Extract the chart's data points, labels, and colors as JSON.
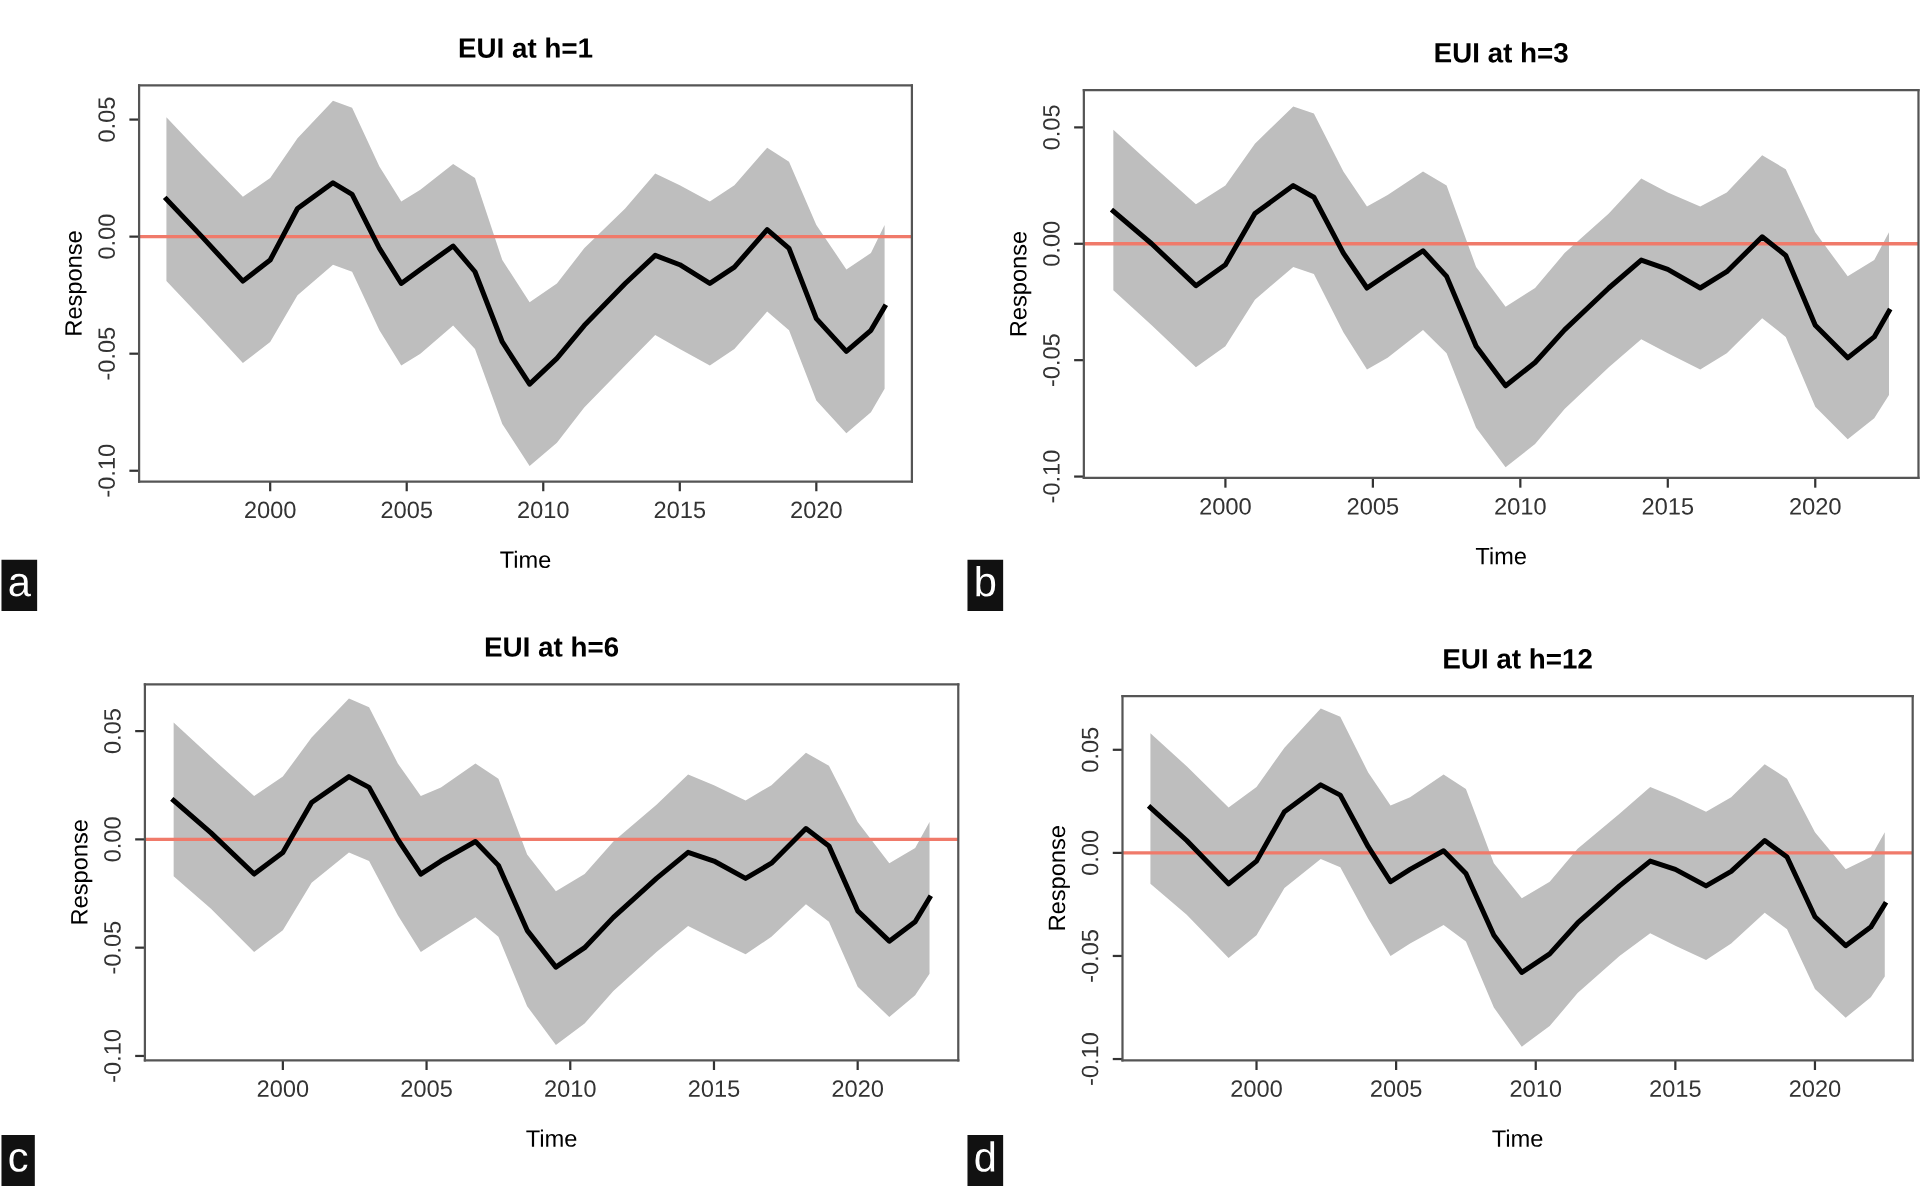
{
  "chart_data": [
    {
      "type": "line",
      "title": "EUI at h=1",
      "xlabel": "Time",
      "ylabel": "Response",
      "annotations": [
        "a"
      ],
      "xlim": [
        1995.2,
        2023.5
      ],
      "ylim": [
        -0.1046,
        0.0646
      ],
      "xticks": [
        2000,
        2005,
        2010,
        2015,
        2020
      ],
      "yticks": [
        {
          "value": -0.1,
          "label": "-0.10"
        },
        {
          "value": -0.05,
          "label": "-0.05"
        },
        {
          "value": 0,
          "label": "0.00"
        },
        {
          "value": 0.05,
          "label": "0.05"
        }
      ],
      "ref_lines": [
        {
          "axis": "y",
          "value": 0,
          "color": "#f07a6a"
        }
      ],
      "x": [
        1996.2,
        1997.5,
        1999,
        2000,
        2001,
        2002.3,
        2003,
        2004,
        2004.8,
        2005.5,
        2006.7,
        2007.5,
        2008.5,
        2009.5,
        2010.5,
        2011.5,
        2013,
        2014.1,
        2015,
        2016.1,
        2017,
        2018.2,
        2019,
        2020,
        2021.1,
        2022,
        2022.5
      ],
      "series": [
        {
          "color": "#000000",
          "values": [
            0.016,
            0.0,
            -0.019,
            -0.01,
            0.012,
            0.023,
            0.018,
            -0.005,
            -0.02,
            -0.014,
            -0.004,
            -0.015,
            -0.045,
            -0.063,
            -0.052,
            -0.038,
            -0.02,
            -0.008,
            -0.012,
            -0.02,
            -0.013,
            0.003,
            -0.005,
            -0.035,
            -0.049,
            -0.04,
            -0.03
          ],
          "upper": [
            0.051,
            0.035,
            0.017,
            0.025,
            0.042,
            0.058,
            0.055,
            0.03,
            0.015,
            0.02,
            0.031,
            0.025,
            -0.01,
            -0.028,
            -0.02,
            -0.005,
            0.012,
            0.027,
            0.022,
            0.015,
            0.022,
            0.038,
            0.032,
            0.005,
            -0.014,
            -0.007,
            0.005
          ],
          "lower": [
            -0.019,
            -0.035,
            -0.054,
            -0.045,
            -0.025,
            -0.012,
            -0.015,
            -0.04,
            -0.055,
            -0.05,
            -0.038,
            -0.048,
            -0.08,
            -0.098,
            -0.088,
            -0.073,
            -0.055,
            -0.042,
            -0.048,
            -0.055,
            -0.048,
            -0.032,
            -0.04,
            -0.07,
            -0.084,
            -0.075,
            -0.065
          ]
        }
      ]
    },
    {
      "type": "line",
      "title": "EUI at h=3",
      "xlabel": "Time",
      "ylabel": "Response",
      "annotations": [
        "b"
      ],
      "xlim": [
        1995.2,
        2023.5
      ],
      "ylim": [
        -0.1006,
        0.066
      ],
      "xticks": [
        2000,
        2005,
        2010,
        2015,
        2020
      ],
      "yticks": [
        {
          "value": -0.1,
          "label": "-0.10"
        },
        {
          "value": -0.05,
          "label": "-0.05"
        },
        {
          "value": 0,
          "label": "0.00"
        },
        {
          "value": 0.05,
          "label": "0.05"
        }
      ],
      "ref_lines": [
        {
          "axis": "y",
          "value": 0,
          "color": "#f07a6a"
        }
      ],
      "x": [
        1996.2,
        1997.5,
        1999,
        2000,
        2001,
        2002.3,
        2003,
        2004,
        2004.8,
        2005.5,
        2006.7,
        2007.5,
        2008.5,
        2009.5,
        2010.5,
        2011.5,
        2013,
        2014.1,
        2015,
        2016.1,
        2017,
        2018.2,
        2019,
        2020,
        2021.1,
        2022,
        2022.5
      ],
      "series": [
        {
          "color": "#000000",
          "values": [
            0.014,
            0.0,
            -0.018,
            -0.009,
            0.013,
            0.025,
            0.02,
            -0.004,
            -0.019,
            -0.013,
            -0.003,
            -0.014,
            -0.044,
            -0.061,
            -0.051,
            -0.037,
            -0.019,
            -0.007,
            -0.011,
            -0.019,
            -0.012,
            0.003,
            -0.005,
            -0.035,
            -0.049,
            -0.04,
            -0.029
          ],
          "upper": [
            0.049,
            0.034,
            0.017,
            0.025,
            0.043,
            0.059,
            0.056,
            0.031,
            0.016,
            0.021,
            0.031,
            0.025,
            -0.01,
            -0.027,
            -0.019,
            -0.004,
            0.013,
            0.028,
            0.022,
            0.016,
            0.022,
            0.038,
            0.032,
            0.005,
            -0.014,
            -0.007,
            0.005
          ],
          "lower": [
            -0.02,
            -0.035,
            -0.053,
            -0.044,
            -0.024,
            -0.01,
            -0.013,
            -0.038,
            -0.054,
            -0.049,
            -0.037,
            -0.047,
            -0.079,
            -0.096,
            -0.086,
            -0.071,
            -0.053,
            -0.041,
            -0.047,
            -0.054,
            -0.047,
            -0.032,
            -0.04,
            -0.07,
            -0.084,
            -0.075,
            -0.065
          ]
        }
      ]
    },
    {
      "type": "line",
      "title": "EUI at h=6",
      "xlabel": "Time",
      "ylabel": "Response",
      "annotations": [
        "c"
      ],
      "xlim": [
        1995.2,
        2023.5
      ],
      "ylim": [
        -0.102,
        0.0716
      ],
      "xticks": [
        2000,
        2005,
        2010,
        2015,
        2020
      ],
      "yticks": [
        {
          "value": -0.1,
          "label": "-0.10"
        },
        {
          "value": -0.05,
          "label": "-0.05"
        },
        {
          "value": 0,
          "label": "0.00"
        },
        {
          "value": 0.05,
          "label": "0.05"
        }
      ],
      "ref_lines": [
        {
          "axis": "y",
          "value": 0,
          "color": "#f07a6a"
        }
      ],
      "x": [
        1996.2,
        1997.5,
        1999,
        2000,
        2001,
        2002.3,
        2003,
        2004,
        2004.8,
        2005.5,
        2006.7,
        2007.5,
        2008.5,
        2009.5,
        2010.5,
        2011.5,
        2013,
        2014.1,
        2015,
        2016.1,
        2017,
        2018.2,
        2019,
        2020,
        2021.1,
        2022,
        2022.5
      ],
      "series": [
        {
          "color": "#000000",
          "values": [
            0.018,
            0.003,
            -0.016,
            -0.006,
            0.017,
            0.029,
            0.024,
            0.0,
            -0.016,
            -0.01,
            -0.001,
            -0.012,
            -0.042,
            -0.059,
            -0.05,
            -0.036,
            -0.018,
            -0.006,
            -0.01,
            -0.018,
            -0.011,
            0.005,
            -0.003,
            -0.033,
            -0.047,
            -0.038,
            -0.027
          ],
          "upper": [
            0.054,
            0.038,
            0.02,
            0.029,
            0.047,
            0.065,
            0.061,
            0.035,
            0.02,
            0.024,
            0.035,
            0.028,
            -0.007,
            -0.024,
            -0.016,
            -0.001,
            0.016,
            0.03,
            0.025,
            0.018,
            0.025,
            0.04,
            0.034,
            0.008,
            -0.011,
            -0.004,
            0.008
          ],
          "lower": [
            -0.017,
            -0.032,
            -0.052,
            -0.042,
            -0.02,
            -0.006,
            -0.01,
            -0.035,
            -0.052,
            -0.046,
            -0.036,
            -0.045,
            -0.077,
            -0.095,
            -0.085,
            -0.07,
            -0.052,
            -0.04,
            -0.046,
            -0.053,
            -0.045,
            -0.03,
            -0.038,
            -0.068,
            -0.082,
            -0.072,
            -0.062
          ]
        }
      ]
    },
    {
      "type": "line",
      "title": "EUI at h=12",
      "xlabel": "Time",
      "ylabel": "Response",
      "annotations": [
        "d"
      ],
      "xlim": [
        1995.2,
        2023.5
      ],
      "ylim": [
        -0.1006,
        0.076
      ],
      "xticks": [
        2000,
        2005,
        2010,
        2015,
        2020
      ],
      "yticks": [
        {
          "value": -0.1,
          "label": "-0.10"
        },
        {
          "value": -0.05,
          "label": "-0.05"
        },
        {
          "value": 0,
          "label": "0.00"
        },
        {
          "value": 0.05,
          "label": "0.05"
        }
      ],
      "ref_lines": [
        {
          "axis": "y",
          "value": 0,
          "color": "#f07a6a"
        }
      ],
      "x": [
        1996.2,
        1997.5,
        1999,
        2000,
        2001,
        2002.3,
        2003,
        2004,
        2004.8,
        2005.5,
        2006.7,
        2007.5,
        2008.5,
        2009.5,
        2010.5,
        2011.5,
        2013,
        2014.1,
        2015,
        2016.1,
        2017,
        2018.2,
        2019,
        2020,
        2021.1,
        2022,
        2022.5
      ],
      "series": [
        {
          "color": "#000000",
          "values": [
            0.022,
            0.006,
            -0.015,
            -0.004,
            0.02,
            0.033,
            0.028,
            0.003,
            -0.014,
            -0.008,
            0.001,
            -0.01,
            -0.04,
            -0.058,
            -0.049,
            -0.034,
            -0.016,
            -0.004,
            -0.008,
            -0.016,
            -0.009,
            0.006,
            -0.002,
            -0.031,
            -0.045,
            -0.036,
            -0.025
          ],
          "upper": [
            0.058,
            0.042,
            0.022,
            0.032,
            0.051,
            0.07,
            0.066,
            0.039,
            0.023,
            0.027,
            0.038,
            0.031,
            -0.005,
            -0.022,
            -0.014,
            0.002,
            0.019,
            0.032,
            0.027,
            0.02,
            0.027,
            0.043,
            0.036,
            0.01,
            -0.008,
            -0.002,
            0.01
          ],
          "lower": [
            -0.015,
            -0.03,
            -0.051,
            -0.04,
            -0.017,
            -0.003,
            -0.007,
            -0.032,
            -0.05,
            -0.044,
            -0.035,
            -0.043,
            -0.075,
            -0.094,
            -0.084,
            -0.068,
            -0.05,
            -0.039,
            -0.045,
            -0.052,
            -0.044,
            -0.029,
            -0.037,
            -0.066,
            -0.08,
            -0.07,
            -0.06
          ]
        }
      ]
    }
  ]
}
